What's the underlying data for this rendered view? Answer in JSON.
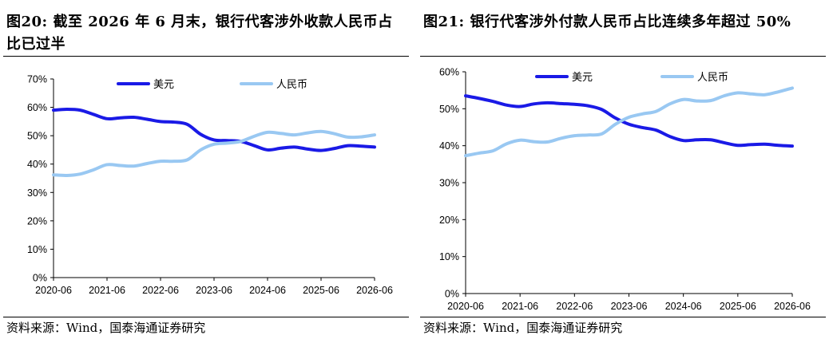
{
  "left": {
    "title": "图20:  截至 2026 年 6 月末，银行代客涉外收款人民币占比已过半",
    "source": "资料来源：Wind，国泰海通证券研究"
  },
  "right": {
    "title": "图21:  银行代客涉外付款人民币占比连续多年超过 50%",
    "source": "资料来源：Wind，国泰海通证券研究"
  },
  "colors": {
    "usd": "#1a1ae6",
    "cny": "#99c8f2"
  },
  "chart_data": [
    {
      "type": "line",
      "x": [
        "2020-06",
        "2020-09",
        "2020-12",
        "2021-03",
        "2021-06",
        "2021-09",
        "2021-12",
        "2022-03",
        "2022-06",
        "2022-09",
        "2022-12",
        "2023-03",
        "2023-06",
        "2023-09",
        "2023-12",
        "2024-03",
        "2024-06",
        "2024-09",
        "2024-12",
        "2025-03",
        "2025-06",
        "2025-09",
        "2025-12",
        "2026-03",
        "2026-06"
      ],
      "xticks": [
        "2020-06",
        "2021-06",
        "2022-06",
        "2023-06",
        "2024-06",
        "2025-06",
        "2026-06"
      ],
      "yticks": [
        "0%",
        "10%",
        "20%",
        "30%",
        "40%",
        "50%",
        "60%",
        "70%"
      ],
      "ylim": [
        0,
        70
      ],
      "legend_position": "top",
      "series": [
        {
          "name": "美元",
          "color": "usd",
          "values": [
            59.0,
            59.3,
            59.0,
            57.5,
            56.0,
            56.3,
            56.5,
            55.8,
            55.0,
            54.8,
            54.0,
            50.5,
            48.5,
            48.3,
            48.0,
            46.5,
            45.0,
            45.6,
            46.0,
            45.3,
            44.8,
            45.5,
            46.5,
            46.3,
            46.0
          ]
        },
        {
          "name": "人民币",
          "color": "cny",
          "values": [
            36.2,
            36.0,
            36.5,
            38.0,
            39.8,
            39.5,
            39.3,
            40.2,
            41.0,
            41.0,
            41.5,
            45.0,
            47.0,
            47.4,
            48.0,
            49.8,
            51.2,
            50.8,
            50.3,
            51.0,
            51.5,
            50.7,
            49.5,
            49.6,
            50.3
          ]
        }
      ]
    },
    {
      "type": "line",
      "x": [
        "2020-06",
        "2020-09",
        "2020-12",
        "2021-03",
        "2021-06",
        "2021-09",
        "2021-12",
        "2022-03",
        "2022-06",
        "2022-09",
        "2022-12",
        "2023-03",
        "2023-06",
        "2023-09",
        "2023-12",
        "2024-03",
        "2024-06",
        "2024-09",
        "2024-12",
        "2025-03",
        "2025-06",
        "2025-09",
        "2025-12",
        "2026-03",
        "2026-06"
      ],
      "xticks": [
        "2020-06",
        "2021-06",
        "2022-06",
        "2023-06",
        "2024-06",
        "2025-06",
        "2026-06"
      ],
      "yticks": [
        "0%",
        "10%",
        "20%",
        "30%",
        "40%",
        "50%",
        "60%"
      ],
      "ylim": [
        0,
        60
      ],
      "legend_position": "top",
      "series": [
        {
          "name": "美元",
          "color": "usd",
          "values": [
            53.5,
            52.8,
            52.0,
            51.0,
            50.6,
            51.3,
            51.6,
            51.4,
            51.2,
            50.8,
            49.8,
            47.5,
            45.8,
            44.9,
            44.2,
            42.5,
            41.4,
            41.6,
            41.6,
            40.8,
            40.1,
            40.3,
            40.4,
            40.1,
            39.9
          ]
        },
        {
          "name": "人民币",
          "color": "cny",
          "values": [
            37.3,
            38.0,
            38.6,
            40.5,
            41.5,
            41.1,
            41.0,
            42.0,
            42.7,
            42.9,
            43.2,
            45.8,
            47.7,
            48.6,
            49.3,
            51.3,
            52.5,
            52.1,
            52.2,
            53.5,
            54.3,
            54.0,
            53.8,
            54.6,
            55.6
          ]
        }
      ]
    }
  ]
}
